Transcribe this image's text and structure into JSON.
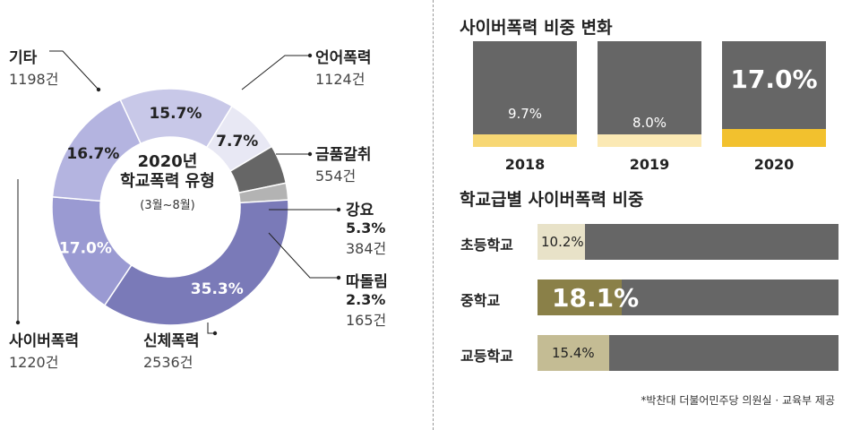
{
  "chart_data": [
    {
      "type": "pie",
      "variant": "donut",
      "title": "2020년 학교폭력 유형",
      "subtitle": "(3월~8월)",
      "slices": [
        {
          "name": "언어폭력",
          "percent": 15.7,
          "count": "1124건",
          "percent_label": "15.7%",
          "color": "#c8c8e8"
        },
        {
          "name": "금품갈취",
          "percent": 7.7,
          "count": "554건",
          "percent_label": "7.7%",
          "color": "#e8e8f4"
        },
        {
          "name": "강요",
          "percent": 5.3,
          "count": "384건",
          "percent_label": "5.3%",
          "color": "#666666"
        },
        {
          "name": "따돌림",
          "percent": 2.3,
          "count": "165건",
          "percent_label": "2.3%",
          "color": "#b3b3b3"
        },
        {
          "name": "신체폭력",
          "percent": 35.3,
          "count": "2536건",
          "percent_label": "35.3%",
          "color": "#7a7ab8"
        },
        {
          "name": "사이버폭력",
          "percent": 17.0,
          "count": "1220건",
          "percent_label": "17.0%",
          "color": "#9a9ad2"
        },
        {
          "name": "기타",
          "percent": 16.7,
          "count": "1198건",
          "percent_label": "16.7%",
          "color": "#b4b4e0"
        }
      ]
    },
    {
      "type": "bar",
      "title": "사이버폭력 비중 변화",
      "categories": [
        "2018",
        "2019",
        "2020"
      ],
      "values": [
        9.7,
        8.0,
        17.0
      ],
      "value_labels": [
        "9.7%",
        "8.0%",
        "17.0%"
      ],
      "colors": [
        "#f7d774",
        "#fbe9b4",
        "#f2c12e"
      ],
      "background": "#666666",
      "ylim": [
        0,
        100
      ]
    },
    {
      "type": "bar",
      "orientation": "horizontal",
      "title": "학교급별 사이버폭력 비중",
      "categories": [
        "초등학교",
        "중학교",
        "교등학교"
      ],
      "values": [
        10.2,
        18.1,
        15.4
      ],
      "value_labels": [
        "10.2%",
        "18.1%",
        "15.4%"
      ],
      "colors": [
        "#e8e2c8",
        "#8a8048",
        "#c4bc94"
      ],
      "background": "#666666",
      "xlim": [
        0,
        100
      ]
    }
  ],
  "source": "*박찬대 더불어민주당 의원실 · 교육부 제공"
}
